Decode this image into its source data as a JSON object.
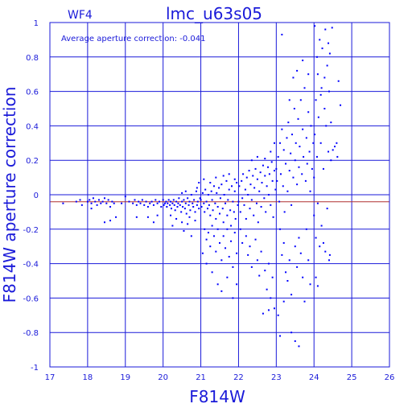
{
  "chart_data": {
    "type": "scatter",
    "panel_label": "WF4",
    "title": "lmc_u63s05",
    "annotation": "Average aperture correction: -0.041",
    "xlabel": "F814W",
    "ylabel": "F814W aperture correction",
    "xlim": [
      17,
      26
    ],
    "ylim": [
      -1,
      1
    ],
    "x_ticks": [
      "17",
      "18",
      "19",
      "20",
      "21",
      "22",
      "23",
      "24",
      "25",
      "26"
    ],
    "y_ticks": [
      "-1",
      "-0.8",
      "-0.6",
      "-0.4",
      "-0.2",
      "0",
      "0.2",
      "0.4",
      "0.6",
      "0.8",
      "1"
    ],
    "grid": true,
    "average_line_y": -0.041,
    "colors": {
      "axes": "#1a1ad9",
      "points": "#0000ff",
      "average_line": "#b03030"
    },
    "points": [
      [
        17.35,
        -0.05
      ],
      [
        17.7,
        -0.04
      ],
      [
        17.8,
        -0.03
      ],
      [
        17.85,
        -0.06
      ],
      [
        18.0,
        -0.04
      ],
      [
        18.05,
        -0.03
      ],
      [
        18.1,
        -0.05
      ],
      [
        18.15,
        -0.02
      ],
      [
        18.2,
        -0.04
      ],
      [
        18.25,
        -0.06
      ],
      [
        18.3,
        -0.03
      ],
      [
        18.35,
        -0.05
      ],
      [
        18.4,
        -0.04
      ],
      [
        18.45,
        -0.02
      ],
      [
        18.5,
        -0.05
      ],
      [
        18.55,
        -0.03
      ],
      [
        18.6,
        -0.07
      ],
      [
        18.65,
        -0.04
      ],
      [
        18.7,
        -0.05
      ],
      [
        18.45,
        -0.16
      ],
      [
        18.6,
        -0.15
      ],
      [
        18.75,
        -0.13
      ],
      [
        18.1,
        -0.08
      ],
      [
        18.9,
        -0.05
      ],
      [
        19.0,
        -0.01
      ],
      [
        19.1,
        -0.04
      ],
      [
        19.2,
        -0.05
      ],
      [
        19.25,
        -0.03
      ],
      [
        19.3,
        -0.06
      ],
      [
        19.35,
        -0.04
      ],
      [
        19.4,
        -0.05
      ],
      [
        19.45,
        -0.03
      ],
      [
        19.5,
        -0.06
      ],
      [
        19.55,
        -0.04
      ],
      [
        19.6,
        -0.07
      ],
      [
        19.65,
        -0.05
      ],
      [
        19.7,
        -0.04
      ],
      [
        19.75,
        -0.06
      ],
      [
        19.8,
        -0.03
      ],
      [
        19.85,
        -0.05
      ],
      [
        19.9,
        -0.04
      ],
      [
        19.95,
        -0.07
      ],
      [
        19.3,
        -0.13
      ],
      [
        19.6,
        -0.13
      ],
      [
        19.75,
        -0.16
      ],
      [
        19.85,
        -0.12
      ],
      [
        20.0,
        -0.03
      ],
      [
        20.02,
        -0.06
      ],
      [
        20.05,
        -0.05
      ],
      [
        20.08,
        -0.04
      ],
      [
        20.1,
        -0.07
      ],
      [
        20.12,
        -0.05
      ],
      [
        20.15,
        -0.03
      ],
      [
        20.18,
        -0.06
      ],
      [
        20.2,
        -0.04
      ],
      [
        20.22,
        -0.08
      ],
      [
        20.25,
        -0.05
      ],
      [
        20.28,
        -0.03
      ],
      [
        20.3,
        -0.06
      ],
      [
        20.32,
        -0.09
      ],
      [
        20.35,
        -0.04
      ],
      [
        20.38,
        -0.07
      ],
      [
        20.4,
        -0.05
      ],
      [
        20.42,
        -0.02
      ],
      [
        20.45,
        -0.06
      ],
      [
        20.48,
        -0.1
      ],
      [
        20.5,
        -0.04
      ],
      [
        20.52,
        -0.07
      ],
      [
        20.55,
        -0.03
      ],
      [
        20.58,
        -0.08
      ],
      [
        20.6,
        -0.05
      ],
      [
        20.62,
        -0.11
      ],
      [
        20.65,
        -0.02
      ],
      [
        20.68,
        -0.06
      ],
      [
        20.7,
        -0.04
      ],
      [
        20.72,
        -0.09
      ],
      [
        20.75,
        0.0
      ],
      [
        20.78,
        -0.05
      ],
      [
        20.8,
        -0.07
      ],
      [
        20.82,
        -0.03
      ],
      [
        20.85,
        -0.1
      ],
      [
        20.88,
        0.02
      ],
      [
        20.9,
        -0.06
      ],
      [
        20.92,
        -0.04
      ],
      [
        20.95,
        -0.08
      ],
      [
        20.98,
        -0.02
      ],
      [
        20.2,
        -0.12
      ],
      [
        20.25,
        -0.18
      ],
      [
        20.35,
        -0.14
      ],
      [
        20.5,
        -0.16
      ],
      [
        20.55,
        -0.21
      ],
      [
        20.65,
        -0.17
      ],
      [
        20.7,
        -0.13
      ],
      [
        20.75,
        -0.24
      ],
      [
        20.85,
        -0.15
      ],
      [
        20.5,
        0.01
      ],
      [
        20.6,
        0.02
      ],
      [
        20.9,
        0.04
      ],
      [
        20.95,
        0.07
      ],
      [
        21.0,
        -0.03
      ],
      [
        21.02,
        -0.07
      ],
      [
        21.05,
        0.01
      ],
      [
        21.08,
        -0.05
      ],
      [
        21.1,
        -0.1
      ],
      [
        21.12,
        0.03
      ],
      [
        21.15,
        -0.04
      ],
      [
        21.18,
        -0.08
      ],
      [
        21.2,
        0.0
      ],
      [
        21.22,
        -0.06
      ],
      [
        21.25,
        -0.12
      ],
      [
        21.28,
        0.02
      ],
      [
        21.3,
        -0.03
      ],
      [
        21.32,
        -0.09
      ],
      [
        21.35,
        0.05
      ],
      [
        21.38,
        -0.05
      ],
      [
        21.4,
        -0.14
      ],
      [
        21.42,
        0.01
      ],
      [
        21.45,
        -0.07
      ],
      [
        21.48,
        0.04
      ],
      [
        21.5,
        -0.11
      ],
      [
        21.52,
        -0.02
      ],
      [
        21.55,
        0.06
      ],
      [
        21.58,
        -0.08
      ],
      [
        21.6,
        -0.16
      ],
      [
        21.62,
        0.0
      ],
      [
        21.65,
        -0.05
      ],
      [
        21.68,
        0.08
      ],
      [
        21.7,
        -0.12
      ],
      [
        21.72,
        -0.03
      ],
      [
        21.75,
        0.03
      ],
      [
        21.78,
        -0.09
      ],
      [
        21.8,
        -0.18
      ],
      [
        21.82,
        0.05
      ],
      [
        21.85,
        -0.04
      ],
      [
        21.88,
        -0.1
      ],
      [
        21.9,
        0.02
      ],
      [
        21.92,
        -0.14
      ],
      [
        21.95,
        0.07
      ],
      [
        21.98,
        -0.06
      ],
      [
        21.1,
        -0.2
      ],
      [
        21.15,
        -0.26
      ],
      [
        21.2,
        -0.22
      ],
      [
        21.25,
        -0.3
      ],
      [
        21.3,
        -0.18
      ],
      [
        21.35,
        -0.24
      ],
      [
        21.4,
        -0.33
      ],
      [
        21.45,
        -0.2
      ],
      [
        21.5,
        -0.28
      ],
      [
        21.55,
        -0.38
      ],
      [
        21.6,
        -0.24
      ],
      [
        21.65,
        -0.31
      ],
      [
        21.7,
        -0.2
      ],
      [
        21.75,
        -0.36
      ],
      [
        21.8,
        -0.27
      ],
      [
        21.85,
        -0.42
      ],
      [
        21.9,
        -0.22
      ],
      [
        21.95,
        -0.34
      ],
      [
        21.05,
        -0.34
      ],
      [
        21.15,
        -0.4
      ],
      [
        21.3,
        -0.45
      ],
      [
        21.45,
        -0.52
      ],
      [
        21.55,
        -0.56
      ],
      [
        21.7,
        -0.48
      ],
      [
        21.85,
        -0.6
      ],
      [
        21.95,
        -0.52
      ],
      [
        21.08,
        0.09
      ],
      [
        21.25,
        0.07
      ],
      [
        21.4,
        0.1
      ],
      [
        21.6,
        0.11
      ],
      [
        21.75,
        0.12
      ],
      [
        21.9,
        0.09
      ],
      [
        22.0,
        -0.04
      ],
      [
        22.02,
        0.05
      ],
      [
        22.05,
        -0.1
      ],
      [
        22.08,
        0.08
      ],
      [
        22.1,
        -0.02
      ],
      [
        22.12,
        0.12
      ],
      [
        22.15,
        -0.06
      ],
      [
        22.18,
        0.03
      ],
      [
        22.2,
        -0.14
      ],
      [
        22.22,
        0.1
      ],
      [
        22.25,
        0.0
      ],
      [
        22.28,
        0.14
      ],
      [
        22.3,
        -0.08
      ],
      [
        22.32,
        0.06
      ],
      [
        22.35,
        -0.03
      ],
      [
        22.38,
        0.11
      ],
      [
        22.4,
        -0.12
      ],
      [
        22.42,
        0.04
      ],
      [
        22.45,
        0.15
      ],
      [
        22.48,
        -0.05
      ],
      [
        22.5,
        0.09
      ],
      [
        22.52,
        -0.16
      ],
      [
        22.55,
        0.02
      ],
      [
        22.58,
        0.13
      ],
      [
        22.6,
        -0.07
      ],
      [
        22.62,
        0.07
      ],
      [
        22.65,
        0.17
      ],
      [
        22.68,
        -0.02
      ],
      [
        22.7,
        0.11
      ],
      [
        22.72,
        -0.1
      ],
      [
        22.75,
        0.05
      ],
      [
        22.78,
        0.16
      ],
      [
        22.8,
        0.0
      ],
      [
        22.82,
        0.12
      ],
      [
        22.85,
        -0.06
      ],
      [
        22.88,
        0.19
      ],
      [
        22.9,
        0.08
      ],
      [
        22.92,
        -0.13
      ],
      [
        22.95,
        0.14
      ],
      [
        22.98,
        0.03
      ],
      [
        22.05,
        -0.2
      ],
      [
        22.1,
        -0.28
      ],
      [
        22.2,
        -0.24
      ],
      [
        22.25,
        -0.35
      ],
      [
        22.3,
        -0.3
      ],
      [
        22.35,
        -0.42
      ],
      [
        22.45,
        -0.26
      ],
      [
        22.5,
        -0.38
      ],
      [
        22.55,
        -0.47
      ],
      [
        22.6,
        -0.33
      ],
      [
        22.7,
        -0.44
      ],
      [
        22.75,
        -0.55
      ],
      [
        22.8,
        -0.4
      ],
      [
        22.85,
        -0.6
      ],
      [
        22.9,
        -0.48
      ],
      [
        22.95,
        -0.66
      ],
      [
        22.65,
        -0.69
      ],
      [
        22.8,
        -0.67
      ],
      [
        22.35,
        0.2
      ],
      [
        22.5,
        0.22
      ],
      [
        22.7,
        0.21
      ],
      [
        22.85,
        0.25
      ],
      [
        22.95,
        0.3
      ],
      [
        23.0,
        0.15
      ],
      [
        23.02,
        0.08
      ],
      [
        23.05,
        0.22
      ],
      [
        23.08,
        -0.04
      ],
      [
        23.1,
        0.3
      ],
      [
        23.12,
        0.12
      ],
      [
        23.15,
        0.38
      ],
      [
        23.18,
        0.05
      ],
      [
        23.2,
        0.26
      ],
      [
        23.22,
        -0.1
      ],
      [
        23.25,
        0.18
      ],
      [
        23.28,
        0.33
      ],
      [
        23.3,
        0.02
      ],
      [
        23.32,
        0.42
      ],
      [
        23.35,
        0.14
      ],
      [
        23.38,
        0.24
      ],
      [
        23.4,
        -0.06
      ],
      [
        23.42,
        0.35
      ],
      [
        23.45,
        0.1
      ],
      [
        23.48,
        0.5
      ],
      [
        23.5,
        0.2
      ],
      [
        23.52,
        0.3
      ],
      [
        23.55,
        0.06
      ],
      [
        23.58,
        0.44
      ],
      [
        23.6,
        0.16
      ],
      [
        23.62,
        0.28
      ],
      [
        23.65,
        0.55
      ],
      [
        23.68,
        0.12
      ],
      [
        23.7,
        0.38
      ],
      [
        23.72,
        0.22
      ],
      [
        23.75,
        0.62
      ],
      [
        23.78,
        0.08
      ],
      [
        23.8,
        0.33
      ],
      [
        23.82,
        0.18
      ],
      [
        23.85,
        0.48
      ],
      [
        23.88,
        0.25
      ],
      [
        23.9,
        0.02
      ],
      [
        23.92,
        0.4
      ],
      [
        23.95,
        0.15
      ],
      [
        23.98,
        0.3
      ],
      [
        23.1,
        -0.2
      ],
      [
        23.15,
        -0.35
      ],
      [
        23.2,
        -0.28
      ],
      [
        23.25,
        -0.45
      ],
      [
        23.3,
        -0.5
      ],
      [
        23.35,
        -0.38
      ],
      [
        23.4,
        -0.58
      ],
      [
        23.5,
        -0.3
      ],
      [
        23.55,
        -0.42
      ],
      [
        23.6,
        -0.25
      ],
      [
        23.65,
        -0.34
      ],
      [
        23.7,
        -0.48
      ],
      [
        23.75,
        -0.62
      ],
      [
        23.8,
        -0.2
      ],
      [
        23.85,
        -0.38
      ],
      [
        23.9,
        -0.52
      ],
      [
        23.05,
        -0.7
      ],
      [
        23.1,
        -0.82
      ],
      [
        23.4,
        -0.8
      ],
      [
        23.5,
        -0.85
      ],
      [
        23.6,
        -0.88
      ],
      [
        23.2,
        -0.62
      ],
      [
        23.15,
        0.93
      ],
      [
        23.35,
        0.55
      ],
      [
        23.45,
        0.68
      ],
      [
        23.55,
        0.72
      ],
      [
        23.7,
        0.78
      ],
      [
        23.85,
        0.7
      ],
      [
        24.0,
        0.1
      ],
      [
        24.02,
        0.35
      ],
      [
        24.05,
        0.55
      ],
      [
        24.08,
        0.22
      ],
      [
        24.1,
        0.7
      ],
      [
        24.12,
        0.45
      ],
      [
        24.15,
        0.9
      ],
      [
        24.18,
        0.3
      ],
      [
        24.2,
        0.62
      ],
      [
        24.22,
        0.85
      ],
      [
        24.25,
        0.15
      ],
      [
        24.28,
        0.5
      ],
      [
        24.3,
        0.96
      ],
      [
        24.32,
        0.4
      ],
      [
        24.35,
        0.75
      ],
      [
        24.38,
        0.25
      ],
      [
        24.4,
        0.6
      ],
      [
        24.42,
        0.82
      ],
      [
        24.45,
        0.2
      ],
      [
        24.48,
        0.97
      ],
      [
        24.5,
        0.26
      ],
      [
        24.55,
        0.28
      ],
      [
        24.6,
        0.3
      ],
      [
        24.62,
        0.22
      ],
      [
        24.65,
        0.66
      ],
      [
        24.7,
        0.52
      ],
      [
        24.0,
        -0.12
      ],
      [
        24.05,
        -0.25
      ],
      [
        24.1,
        -0.05
      ],
      [
        24.15,
        -0.3
      ],
      [
        24.2,
        -0.18
      ],
      [
        24.25,
        -0.28
      ],
      [
        24.3,
        -0.33
      ],
      [
        24.35,
        -0.08
      ],
      [
        24.4,
        -0.38
      ],
      [
        24.42,
        -0.35
      ],
      [
        24.05,
        -0.48
      ],
      [
        24.1,
        -0.53
      ],
      [
        24.02,
        0.98
      ],
      [
        24.08,
        0.8
      ],
      [
        24.18,
        0.58
      ],
      [
        24.28,
        0.68
      ],
      [
        24.38,
        0.88
      ],
      [
        24.45,
        0.42
      ]
    ]
  }
}
